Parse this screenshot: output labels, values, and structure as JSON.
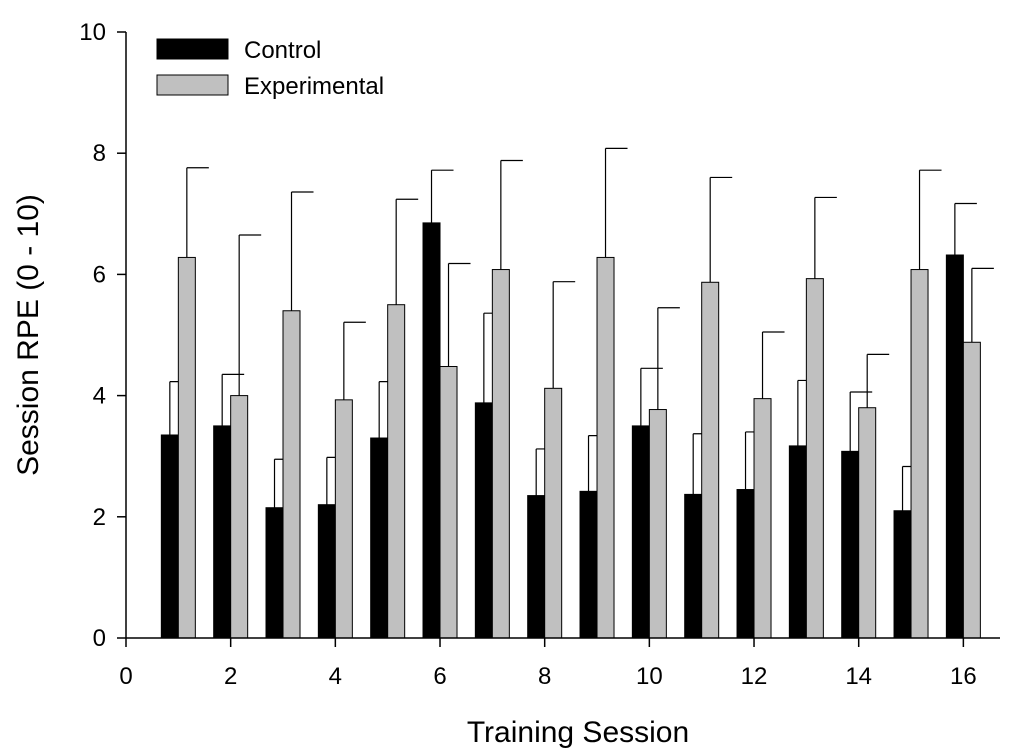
{
  "chart_data": {
    "type": "bar",
    "xlabel": "Training Session",
    "ylabel": "Session RPE (0 - 10)",
    "xlim": [
      0,
      16.7
    ],
    "ylim": [
      0,
      10
    ],
    "xticks": [
      "0",
      "2",
      "4",
      "6",
      "8",
      "10",
      "12",
      "14",
      "16"
    ],
    "yticks": [
      "0",
      "2",
      "4",
      "6",
      "8",
      "10"
    ],
    "legend_position": "top-left",
    "grid": false,
    "x": [
      1,
      2,
      3,
      4,
      5,
      6,
      7,
      8,
      9,
      10,
      11,
      12,
      13,
      14,
      15,
      16
    ],
    "series": [
      {
        "name": "Control",
        "color": "#000000",
        "values": [
          3.35,
          3.5,
          2.15,
          2.2,
          3.3,
          6.85,
          3.88,
          2.35,
          2.42,
          3.5,
          2.37,
          2.45,
          3.17,
          3.08,
          2.1,
          6.32
        ],
        "error": [
          0.88,
          0.85,
          0.8,
          0.78,
          0.93,
          0.87,
          1.48,
          0.77,
          0.92,
          0.95,
          1.0,
          0.95,
          1.08,
          0.98,
          0.73,
          0.85
        ]
      },
      {
        "name": "Experimental",
        "color": "#c0c0c0",
        "values": [
          6.28,
          4.0,
          5.4,
          3.93,
          5.5,
          4.48,
          6.08,
          4.12,
          6.28,
          3.77,
          5.87,
          3.95,
          5.93,
          3.8,
          6.08,
          4.88
        ],
        "error": [
          1.48,
          2.65,
          1.96,
          1.28,
          1.74,
          1.7,
          1.8,
          1.76,
          1.8,
          1.68,
          1.73,
          1.1,
          1.34,
          0.88,
          1.64,
          1.22
        ]
      }
    ]
  }
}
